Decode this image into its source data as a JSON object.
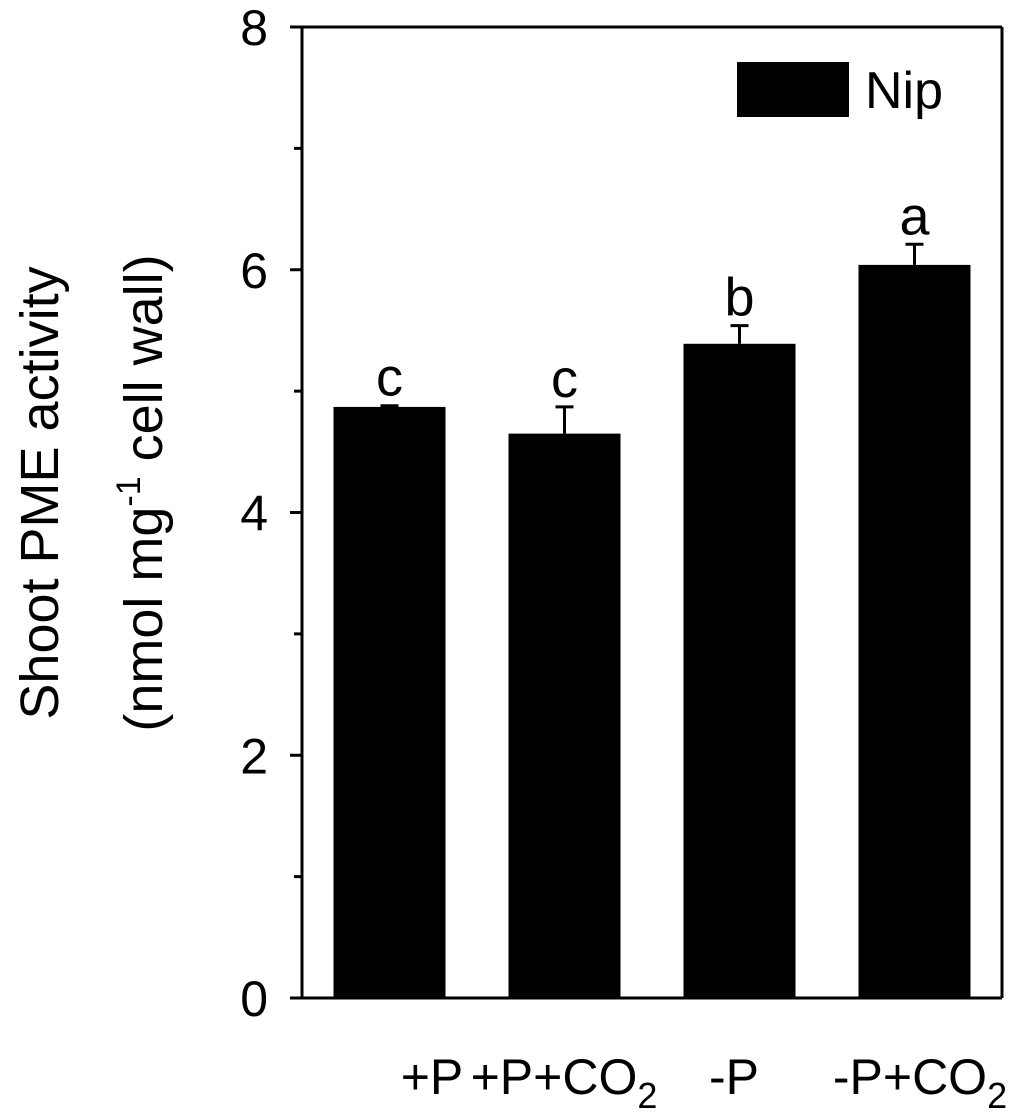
{
  "chart_data": {
    "type": "bar",
    "categories": [
      "+P",
      "+P+CO2",
      "-P",
      "-P+CO2"
    ],
    "category_labels": [
      {
        "main": "+P",
        "sub": ""
      },
      {
        "main": "+P+CO",
        "sub": "2"
      },
      {
        "main": "-P",
        "sub": ""
      },
      {
        "main": "-P+CO",
        "sub": "2"
      }
    ],
    "series": [
      {
        "name": "Nip",
        "values": [
          4.87,
          4.65,
          5.39,
          6.04
        ],
        "errors": [
          0.01,
          0.22,
          0.15,
          0.17
        ],
        "color": "#000000"
      }
    ],
    "significance": [
      "c",
      "c",
      "b",
      "a"
    ],
    "ylabel_line1": "Shoot PME activity",
    "ylabel_line2_prefix": "(nmol mg",
    "ylabel_line2_sup": "-1",
    "ylabel_line2_suffix": " cell wall)",
    "ylim": [
      0,
      8
    ],
    "major_ticks": [
      0,
      2,
      4,
      6,
      8
    ],
    "minor_ticks": [
      1,
      3,
      5,
      7
    ],
    "legend_position": "top-right",
    "grid": false
  }
}
